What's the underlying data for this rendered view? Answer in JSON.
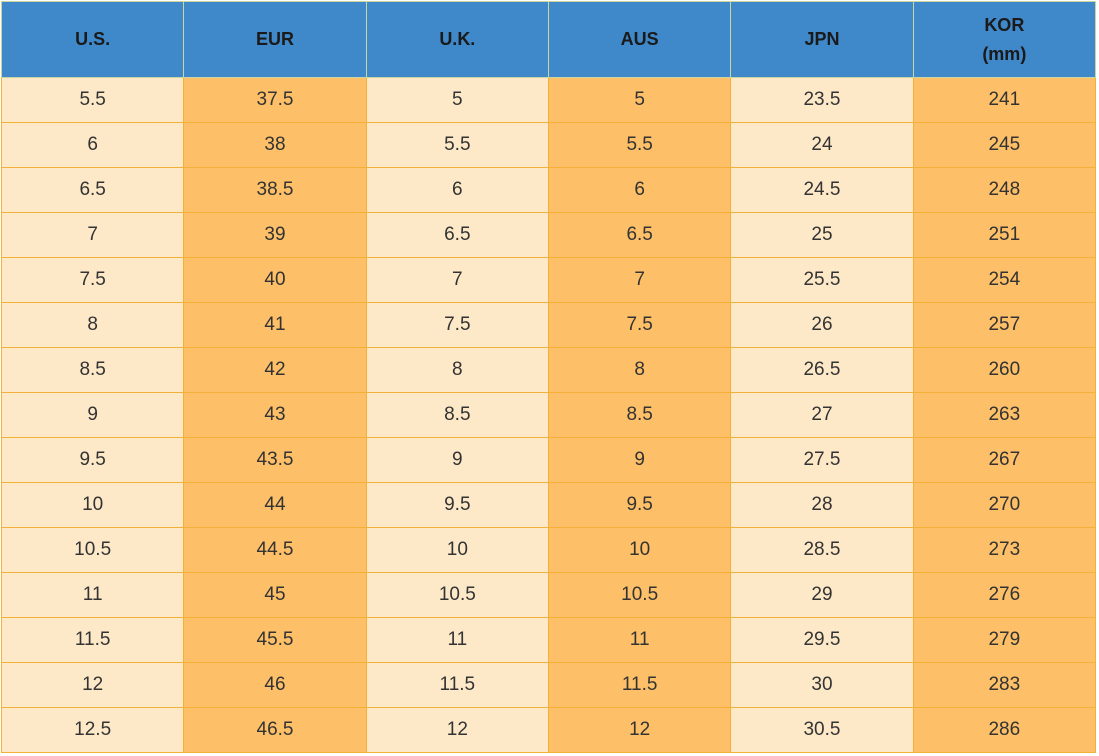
{
  "table": {
    "header": [
      "U.S.",
      "EUR",
      "U.K.",
      "AUS",
      "JPN",
      "KOR\n(mm)"
    ],
    "rows": [
      [
        5.5,
        37.5,
        5,
        5,
        23.5,
        241
      ],
      [
        6,
        38,
        5.5,
        5.5,
        24,
        245
      ],
      [
        6.5,
        38.5,
        6,
        6,
        24.5,
        248
      ],
      [
        7,
        39,
        6.5,
        6.5,
        25,
        251
      ],
      [
        7.5,
        40,
        7,
        7,
        25.5,
        254
      ],
      [
        8,
        41,
        7.5,
        7.5,
        26,
        257
      ],
      [
        8.5,
        42,
        8,
        8,
        26.5,
        260
      ],
      [
        9,
        43,
        8.5,
        8.5,
        27,
        263
      ],
      [
        9.5,
        43.5,
        9,
        9,
        27.5,
        267
      ],
      [
        10,
        44,
        9.5,
        9.5,
        28,
        270
      ],
      [
        10.5,
        44.5,
        10,
        10,
        28.5,
        273
      ],
      [
        11,
        45,
        10.5,
        10.5,
        29,
        276
      ],
      [
        11.5,
        45.5,
        11,
        11,
        29.5,
        279
      ],
      [
        12,
        46,
        11.5,
        11.5,
        30,
        283
      ],
      [
        12.5,
        46.5,
        12,
        12,
        30.5,
        286
      ]
    ]
  }
}
